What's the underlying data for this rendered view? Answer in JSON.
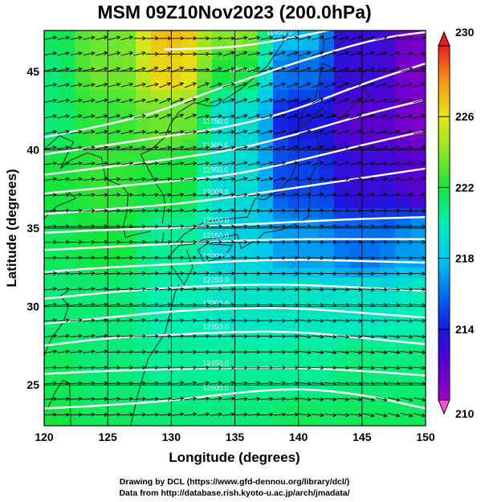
{
  "chart_data": {
    "type": "heatmap",
    "title": "MSM 09Z10Nov2023 (200.0hPa)",
    "xlabel": "Longitude (degrees)",
    "ylabel": "Latitude  (degrees)",
    "xlim": [
      120,
      150
    ],
    "ylim": [
      22.4,
      47.6
    ],
    "x_ticks": [
      120,
      125,
      130,
      135,
      140,
      145,
      150
    ],
    "y_ticks": [
      25,
      30,
      35,
      40,
      45
    ],
    "colorbar": {
      "range": [
        210,
        230
      ],
      "ticks": [
        210,
        214,
        218,
        222,
        226,
        230
      ],
      "end_arrows": true
    },
    "temperature_field": [
      {
        "lon": 120,
        "lat": 47.5,
        "value": 221.5
      },
      {
        "lon": 125,
        "lat": 47.5,
        "value": 223.5
      },
      {
        "lon": 130,
        "lat": 47.5,
        "value": 227
      },
      {
        "lon": 135,
        "lat": 47.5,
        "value": 224
      },
      {
        "lon": 140,
        "lat": 47.5,
        "value": 218
      },
      {
        "lon": 145,
        "lat": 47.5,
        "value": 213
      },
      {
        "lon": 150,
        "lat": 47.5,
        "value": 211
      },
      {
        "lon": 120,
        "lat": 45,
        "value": 221
      },
      {
        "lon": 125,
        "lat": 45,
        "value": 223.5
      },
      {
        "lon": 130,
        "lat": 45,
        "value": 226.5
      },
      {
        "lon": 135,
        "lat": 45,
        "value": 222
      },
      {
        "lon": 140,
        "lat": 45,
        "value": 216
      },
      {
        "lon": 145,
        "lat": 45,
        "value": 213
      },
      {
        "lon": 150,
        "lat": 45,
        "value": 211
      },
      {
        "lon": 120,
        "lat": 42,
        "value": 221
      },
      {
        "lon": 125,
        "lat": 42,
        "value": 222.5
      },
      {
        "lon": 130,
        "lat": 42,
        "value": 223.5
      },
      {
        "lon": 135,
        "lat": 42,
        "value": 219
      },
      {
        "lon": 140,
        "lat": 42,
        "value": 214
      },
      {
        "lon": 145,
        "lat": 42,
        "value": 212
      },
      {
        "lon": 150,
        "lat": 42,
        "value": 211
      },
      {
        "lon": 120,
        "lat": 38,
        "value": 222
      },
      {
        "lon": 125,
        "lat": 38,
        "value": 222.5
      },
      {
        "lon": 130,
        "lat": 38,
        "value": 222
      },
      {
        "lon": 135,
        "lat": 38,
        "value": 219
      },
      {
        "lon": 140,
        "lat": 38,
        "value": 215
      },
      {
        "lon": 145,
        "lat": 38,
        "value": 213
      },
      {
        "lon": 150,
        "lat": 38,
        "value": 212
      },
      {
        "lon": 120,
        "lat": 34,
        "value": 221.5
      },
      {
        "lon": 125,
        "lat": 34,
        "value": 222
      },
      {
        "lon": 130,
        "lat": 34,
        "value": 220.5
      },
      {
        "lon": 135,
        "lat": 34,
        "value": 218.5
      },
      {
        "lon": 140,
        "lat": 34,
        "value": 217
      },
      {
        "lon": 145,
        "lat": 34,
        "value": 216
      },
      {
        "lon": 150,
        "lat": 34,
        "value": 217
      },
      {
        "lon": 120,
        "lat": 30,
        "value": 221
      },
      {
        "lon": 125,
        "lat": 30,
        "value": 221
      },
      {
        "lon": 130,
        "lat": 30,
        "value": 220
      },
      {
        "lon": 135,
        "lat": 30,
        "value": 219.5
      },
      {
        "lon": 140,
        "lat": 30,
        "value": 219.5
      },
      {
        "lon": 145,
        "lat": 30,
        "value": 219.5
      },
      {
        "lon": 150,
        "lat": 30,
        "value": 220
      },
      {
        "lon": 120,
        "lat": 26,
        "value": 221.5
      },
      {
        "lon": 125,
        "lat": 26,
        "value": 221
      },
      {
        "lon": 130,
        "lat": 26,
        "value": 220.5
      },
      {
        "lon": 135,
        "lat": 26,
        "value": 220.5
      },
      {
        "lon": 140,
        "lat": 26,
        "value": 220.5
      },
      {
        "lon": 145,
        "lat": 26,
        "value": 221
      },
      {
        "lon": 150,
        "lat": 26,
        "value": 221
      },
      {
        "lon": 120,
        "lat": 22.5,
        "value": 222
      },
      {
        "lon": 125,
        "lat": 22.5,
        "value": 221.5
      },
      {
        "lon": 130,
        "lat": 22.5,
        "value": 221
      },
      {
        "lon": 135,
        "lat": 22.5,
        "value": 221
      },
      {
        "lon": 140,
        "lat": 22.5,
        "value": 221.5
      },
      {
        "lon": 145,
        "lat": 22.5,
        "value": 221.5
      },
      {
        "lon": 150,
        "lat": 22.5,
        "value": 221.5
      }
    ],
    "height_contours": [
      {
        "label": "11450.0",
        "points": [
          [
            129.5,
            46.4
          ],
          [
            135,
            46.5
          ],
          [
            140,
            47.2
          ],
          [
            144,
            47.9
          ]
        ]
      },
      {
        "label": "11600.0",
        "points": [
          [
            120,
            40.8
          ],
          [
            125,
            41.6
          ],
          [
            129,
            42.4
          ],
          [
            133,
            43.7
          ],
          [
            137,
            44.8
          ],
          [
            140,
            45.6
          ],
          [
            144,
            46.6
          ],
          [
            147,
            47.2
          ],
          [
            150,
            47.5
          ]
        ]
      },
      {
        "label": "11750.0",
        "points": [
          [
            120,
            39.7
          ],
          [
            125,
            40.3
          ],
          [
            130,
            40.9
          ],
          [
            135,
            41.5
          ],
          [
            140,
            42.6
          ],
          [
            145,
            44.2
          ],
          [
            150,
            45.5
          ]
        ]
      },
      {
        "label": "11900.0",
        "points": [
          [
            120,
            38.4
          ],
          [
            125,
            38.9
          ],
          [
            130,
            39.4
          ],
          [
            135,
            40.0
          ],
          [
            140,
            41.0
          ],
          [
            145,
            42.2
          ],
          [
            150,
            43.2
          ]
        ]
      },
      {
        "label": "11950.0",
        "points": [
          [
            120,
            37.2
          ],
          [
            125,
            37.6
          ],
          [
            130,
            38.0
          ],
          [
            135,
            38.4
          ],
          [
            140,
            39.3
          ],
          [
            145,
            40.3
          ],
          [
            150,
            41.2
          ]
        ]
      },
      {
        "label": "12000.0",
        "points": [
          [
            120,
            35.9
          ],
          [
            125,
            36.2
          ],
          [
            130,
            36.5
          ],
          [
            135,
            37.0
          ],
          [
            140,
            37.6
          ],
          [
            145,
            38.2
          ],
          [
            150,
            38.8
          ]
        ]
      },
      {
        "label": "12100.0",
        "points": [
          [
            120,
            34.7
          ],
          [
            125,
            34.9
          ],
          [
            130,
            35.0
          ],
          [
            135,
            35.2
          ],
          [
            140,
            35.4
          ],
          [
            145,
            35.6
          ],
          [
            150,
            35.7
          ]
        ]
      },
      {
        "label": "12150.0",
        "points": [
          [
            120,
            33.6
          ],
          [
            125,
            33.8
          ],
          [
            130,
            34.0
          ],
          [
            135,
            34.2
          ],
          [
            140,
            34.3
          ],
          [
            145,
            34.3
          ],
          [
            150,
            34.3
          ]
        ]
      },
      {
        "label": "12200.0",
        "points": [
          [
            120,
            32.2
          ],
          [
            125,
            32.5
          ],
          [
            130,
            32.7
          ],
          [
            135,
            32.9
          ],
          [
            140,
            33.0
          ],
          [
            145,
            32.9
          ],
          [
            150,
            32.8
          ]
        ]
      },
      {
        "label": "12250.0",
        "points": [
          [
            120,
            30.5
          ],
          [
            125,
            30.9
          ],
          [
            130,
            31.2
          ],
          [
            135,
            31.4
          ],
          [
            140,
            31.4
          ],
          [
            145,
            31.2
          ],
          [
            150,
            31.0
          ]
        ]
      },
      {
        "label": "12300.0",
        "points": [
          [
            120,
            28.9
          ],
          [
            125,
            29.3
          ],
          [
            130,
            29.7
          ],
          [
            135,
            29.9
          ],
          [
            140,
            29.9
          ],
          [
            145,
            29.6
          ],
          [
            150,
            29.3
          ]
        ]
      },
      {
        "label": "12350.0",
        "points": [
          [
            120,
            27.5
          ],
          [
            125,
            28.0
          ],
          [
            130,
            28.2
          ],
          [
            135,
            28.4
          ],
          [
            140,
            28.4
          ],
          [
            145,
            28.0
          ],
          [
            150,
            27.6
          ]
        ]
      },
      {
        "label": "12450.0",
        "points": [
          [
            120,
            25.7
          ],
          [
            125,
            25.9
          ],
          [
            130,
            26.0
          ],
          [
            135,
            26.1
          ],
          [
            140,
            26.1
          ],
          [
            145,
            25.9
          ],
          [
            150,
            25.6
          ]
        ]
      },
      {
        "label": "12500.0",
        "points": [
          [
            120,
            23.5
          ],
          [
            125,
            23.7
          ],
          [
            130,
            24.0
          ],
          [
            135,
            24.5
          ],
          [
            140,
            24.8
          ],
          [
            145,
            24.4
          ],
          [
            150,
            23.5
          ]
        ]
      }
    ],
    "wind_direction": "westerly"
  },
  "credits": {
    "line1": "Drawing by DCL (https://www.gfd-dennou.org/library/dcl/)",
    "line2": "Data from http://database.rish.kyoto-u.ac.jp/arch/jmadata/"
  }
}
